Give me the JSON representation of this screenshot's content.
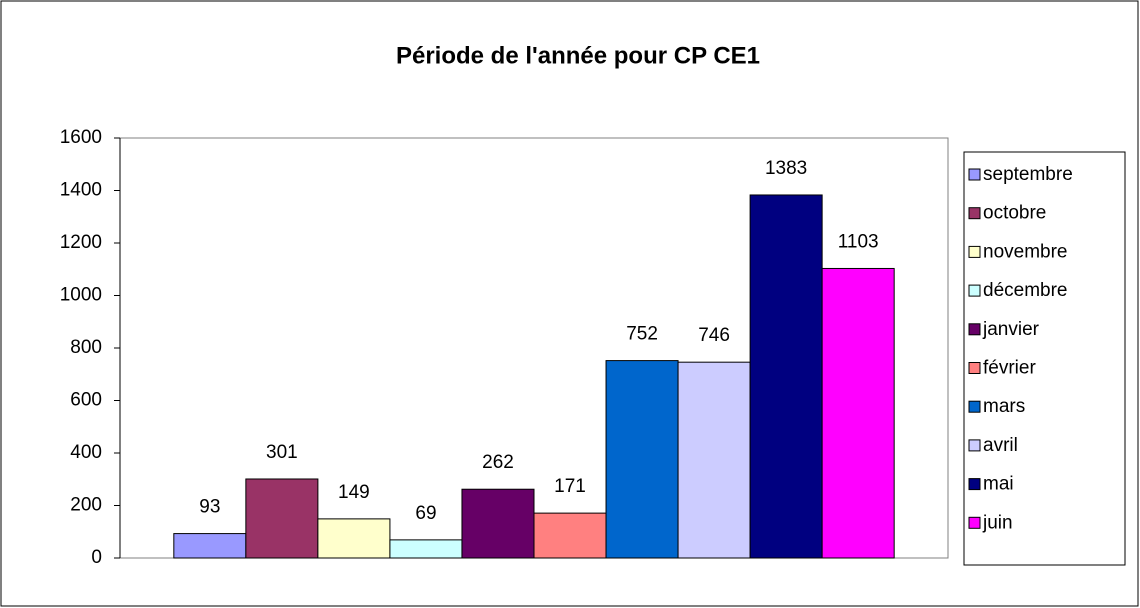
{
  "chart_data": {
    "type": "bar",
    "title": "Période de l'année pour CP CE1",
    "categories": [
      null
    ],
    "series": [
      {
        "name": "septembre",
        "color": "#9999ff",
        "values": [
          93
        ]
      },
      {
        "name": "octobre",
        "color": "#993366",
        "values": [
          301
        ]
      },
      {
        "name": "novembre",
        "color": "#ffffcc",
        "values": [
          149
        ]
      },
      {
        "name": "décembre",
        "color": "#ccffff",
        "values": [
          69
        ]
      },
      {
        "name": "janvier",
        "color": "#660066",
        "values": [
          262
        ]
      },
      {
        "name": "février",
        "color": "#ff8080",
        "values": [
          171
        ]
      },
      {
        "name": "mars",
        "color": "#0066cc",
        "values": [
          752
        ]
      },
      {
        "name": "avril",
        "color": "#ccccff",
        "values": [
          746
        ]
      },
      {
        "name": "mai",
        "color": "#000080",
        "values": [
          1383
        ]
      },
      {
        "name": "juin",
        "color": "#ff00ff",
        "values": [
          1103
        ]
      }
    ],
    "ylim": [
      0,
      1600
    ],
    "yticks": [
      0,
      200,
      400,
      600,
      800,
      1000,
      1200,
      1400,
      1600
    ],
    "grid": false,
    "legend": "right"
  }
}
